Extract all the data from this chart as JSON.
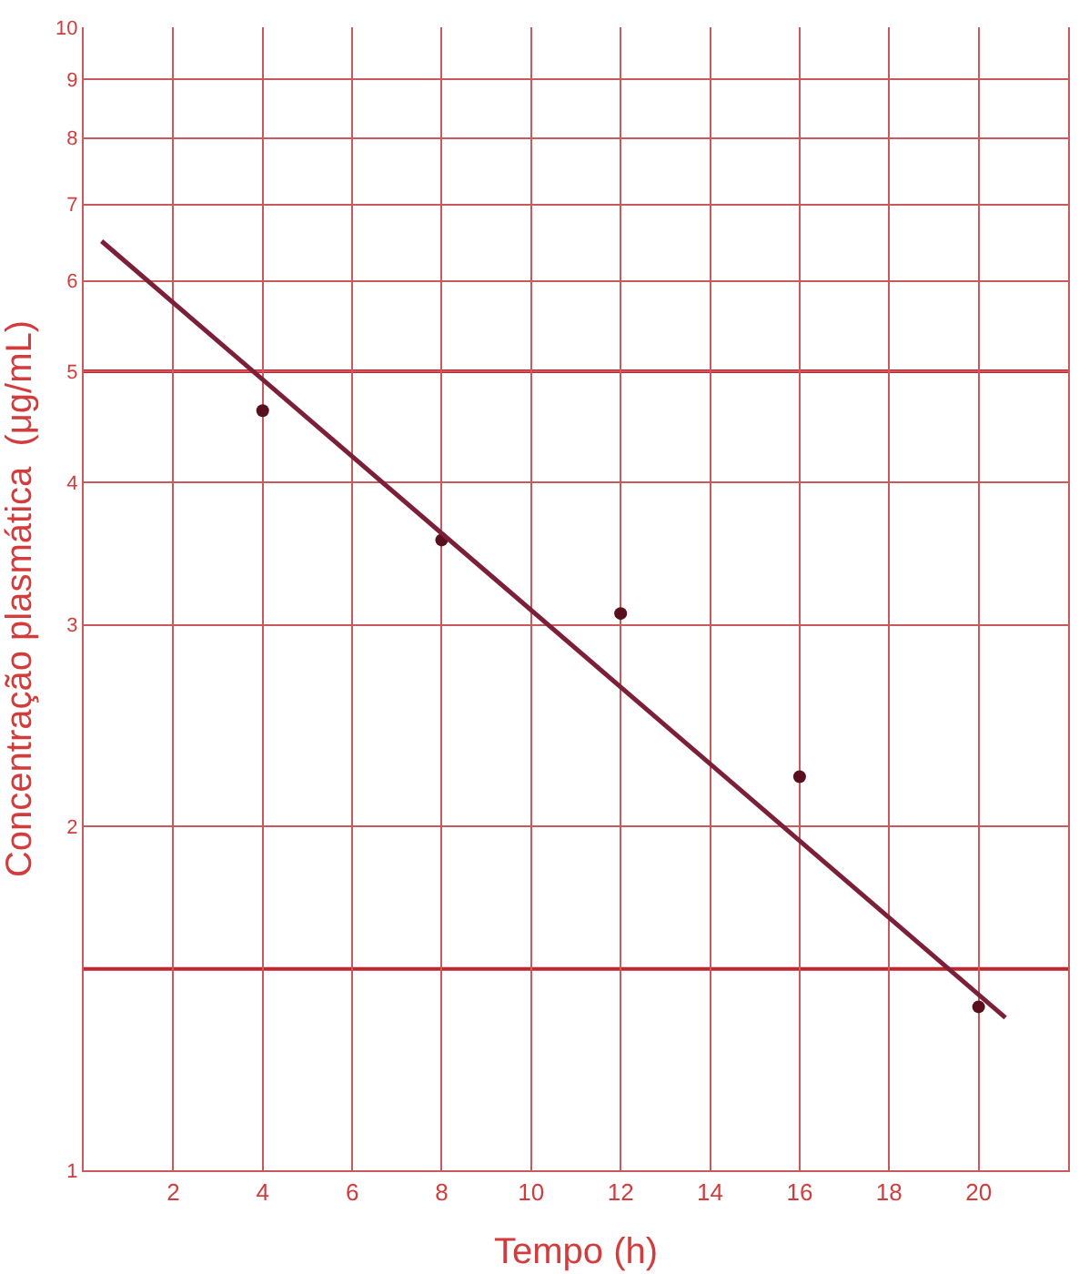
{
  "chart_data": {
    "type": "scatter",
    "xlabel": "Tempo (h)",
    "ylabel": "Concentração plasmática  (μg/mL)",
    "series": [
      {
        "color": "#5a0f1e",
        "marker": "circle",
        "x": [
          4,
          8,
          12,
          16,
          20
        ],
        "values": [
          4.62,
          3.56,
          3.07,
          2.21,
          1.39
        ]
      },
      {
        "type": "line",
        "color": "#7b2038",
        "marker": "none",
        "line_style": "solid",
        "x": [
          0.4,
          20.6
        ],
        "values": [
          6.5,
          1.36
        ]
      }
    ],
    "log": "y",
    "xlim": [
      0,
      22
    ],
    "ylim": [
      1,
      10
    ],
    "xticks": [
      2,
      4,
      6,
      8,
      10,
      12,
      14,
      16,
      18,
      20
    ],
    "yticks": [
      1,
      2,
      3,
      4,
      5,
      6,
      7,
      8,
      9,
      10
    ],
    "ref_lines": [
      {
        "axis": "y",
        "value": 1.5,
        "label": null,
        "color": "#c0262d"
      },
      {
        "axis": "y",
        "value": 5,
        "label": null,
        "color": "#c0262d"
      }
    ],
    "grid": true
  }
}
